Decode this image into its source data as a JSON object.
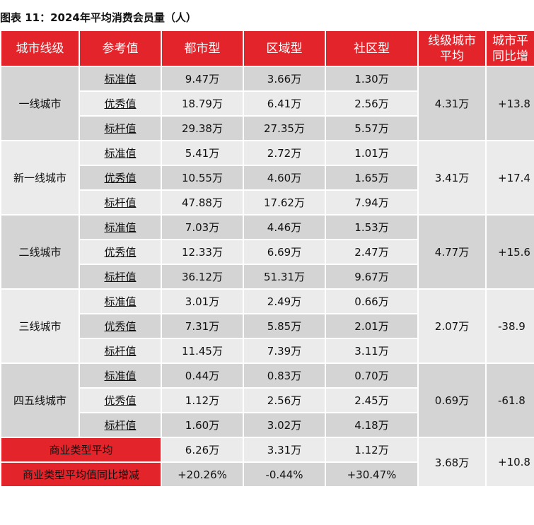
{
  "title": "图表 11：2024年平均消费会员量（人）",
  "headers": [
    "城市线级",
    "参考值",
    "都市型",
    "区域型",
    "社区型",
    [
      "线级城市",
      "平均"
    ],
    [
      "城市平",
      "同比增"
    ]
  ],
  "groups": [
    {
      "city": "一线城市",
      "avg": "4.31万",
      "yoy": "+13.8",
      "rows": [
        {
          "ref": "标准值",
          "values": [
            "9.47万",
            "3.66万",
            "1.30万"
          ]
        },
        {
          "ref": "优秀值",
          "values": [
            "18.79万",
            "6.41万",
            "2.56万"
          ]
        },
        {
          "ref": "标杆值",
          "values": [
            "29.38万",
            "27.35万",
            "5.57万"
          ]
        }
      ]
    },
    {
      "city": "新一线城市",
      "avg": "3.41万",
      "yoy": "+17.4",
      "rows": [
        {
          "ref": "标准值",
          "values": [
            "5.41万",
            "2.72万",
            "1.01万"
          ]
        },
        {
          "ref": "优秀值",
          "values": [
            "10.55万",
            "4.60万",
            "1.65万"
          ]
        },
        {
          "ref": "标杆值",
          "values": [
            "47.88万",
            "17.62万",
            "7.94万"
          ]
        }
      ]
    },
    {
      "city": "二线城市",
      "avg": "4.77万",
      "yoy": "+15.6",
      "rows": [
        {
          "ref": "标准值",
          "values": [
            "7.03万",
            "4.46万",
            "1.53万"
          ]
        },
        {
          "ref": "优秀值",
          "values": [
            "12.33万",
            "6.69万",
            "2.47万"
          ]
        },
        {
          "ref": "标杆值",
          "values": [
            "36.12万",
            "51.31万",
            "9.67万"
          ]
        }
      ]
    },
    {
      "city": "三线城市",
      "avg": "2.07万",
      "yoy": "-38.9",
      "rows": [
        {
          "ref": "标准值",
          "values": [
            "3.01万",
            "2.49万",
            "0.66万"
          ]
        },
        {
          "ref": "优秀值",
          "values": [
            "7.31万",
            "5.85万",
            "2.01万"
          ]
        },
        {
          "ref": "标杆值",
          "values": [
            "11.45万",
            "7.39万",
            "3.11万"
          ]
        }
      ]
    },
    {
      "city": "四五线城市",
      "avg": "0.69万",
      "yoy": "-61.8",
      "rows": [
        {
          "ref": "标准值",
          "values": [
            "0.44万",
            "0.83万",
            "0.70万"
          ]
        },
        {
          "ref": "优秀值",
          "values": [
            "1.12万",
            "2.56万",
            "2.45万"
          ]
        },
        {
          "ref": "标杆值",
          "values": [
            "1.60万",
            "3.02万",
            "4.18万"
          ]
        }
      ]
    }
  ],
  "summary": {
    "avg_label": "商业类型平均",
    "avg_values": [
      "6.26万",
      "3.31万",
      "1.12万"
    ],
    "yoy_label": "商业类型平均值同比增减",
    "yoy_values": [
      "+20.26%",
      "-0.44%",
      "+30.47%"
    ],
    "overall_avg": "3.68万",
    "overall_yoy": "+10.8"
  },
  "colors": {
    "header_red": "#e3242b",
    "gray": "#d4d4d4",
    "light": "#ebebeb"
  }
}
